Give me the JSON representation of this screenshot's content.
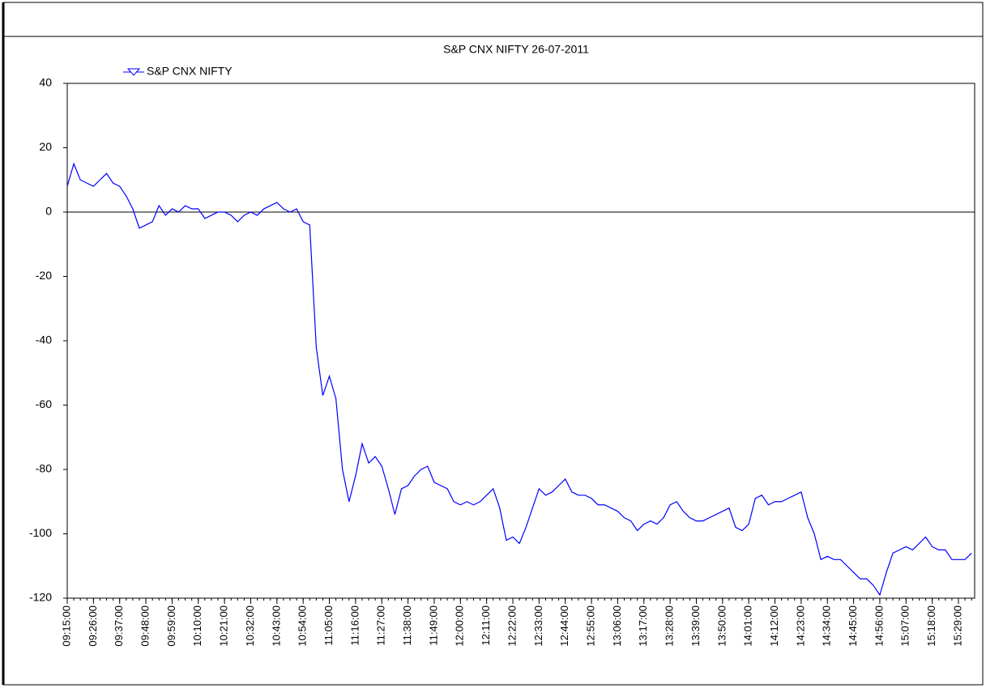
{
  "chart_data": {
    "type": "line",
    "title": "S&P CNX NIFTY  26-07-2011",
    "categories": [
      "09:15:00",
      null,
      null,
      null,
      "09:26:00",
      null,
      null,
      null,
      "09:37:00",
      null,
      null,
      null,
      "09:48:00",
      null,
      null,
      null,
      "09:59:00",
      null,
      null,
      null,
      "10:10:00",
      null,
      null,
      null,
      "10:21:00",
      null,
      null,
      null,
      "10:32:00",
      null,
      null,
      null,
      "10:43:00",
      null,
      null,
      null,
      "10:54:00",
      null,
      null,
      null,
      "11:05:00",
      null,
      null,
      null,
      "11:16:00",
      null,
      null,
      null,
      "11:27:00",
      null,
      null,
      null,
      "11:38:00",
      null,
      null,
      null,
      "11:49:00",
      null,
      null,
      null,
      "12:00:00",
      null,
      null,
      null,
      "12:11:00",
      null,
      null,
      null,
      "12:22:00",
      null,
      null,
      null,
      "12:33:00",
      null,
      null,
      null,
      "12:44:00",
      null,
      null,
      null,
      "12:55:00",
      null,
      null,
      null,
      "13:06:00",
      null,
      null,
      null,
      "13:17:00",
      null,
      null,
      null,
      "13:28:00",
      null,
      null,
      null,
      "13:39:00",
      null,
      null,
      null,
      "13:50:00",
      null,
      null,
      null,
      "14:01:00",
      null,
      null,
      null,
      "14:12:00",
      null,
      null,
      null,
      "14:23:00",
      null,
      null,
      null,
      "14:34:00",
      null,
      null,
      null,
      "14:45:00",
      null,
      null,
      null,
      "14:56:00",
      null,
      null,
      null,
      "15:07:00",
      null,
      null,
      null,
      "15:18:00",
      null,
      null,
      null,
      "15:29:00",
      null,
      null
    ],
    "series": [
      {
        "name": "S&P CNX NIFTY",
        "color": "#0000ff",
        "values": [
          8,
          15,
          10,
          9,
          8,
          10,
          12,
          9,
          8,
          5,
          1,
          -5,
          -4,
          -3,
          2,
          -1,
          1,
          0,
          2,
          1,
          1,
          -2,
          -1,
          0,
          0,
          -1,
          -3,
          -1,
          0,
          -1,
          1,
          2,
          3,
          1,
          0,
          1,
          -3,
          -4,
          -42,
          -57,
          -51,
          -58,
          -80,
          -90,
          -82,
          -72,
          -78,
          -76,
          -79,
          -86,
          -94,
          -86,
          -85,
          -82,
          -80,
          -79,
          -84,
          -85,
          -86,
          -90,
          -91,
          -90,
          -91,
          -90,
          -88,
          -86,
          -92,
          -102,
          -101,
          -103,
          -98,
          -92,
          -86,
          -88,
          -87,
          -85,
          -83,
          -87,
          -88,
          -88,
          -89,
          -91,
          -91,
          -92,
          -93,
          -95,
          -96,
          -99,
          -97,
          -96,
          -97,
          -95,
          -91,
          -90,
          -93,
          -95,
          -96,
          -96,
          -95,
          -94,
          -93,
          -92,
          -98,
          -99,
          -97,
          -89,
          -88,
          -91,
          -90,
          -90,
          -89,
          -88,
          -87,
          -95,
          -100,
          -108,
          -107,
          -108,
          -108,
          -110,
          -112,
          -114,
          -114,
          -116,
          -119,
          -112,
          -106,
          -105,
          -104,
          -105,
          -103,
          -101,
          -104,
          -105,
          -105,
          -108,
          -108,
          -108,
          -106
        ]
      }
    ],
    "ylim": [
      -120,
      40
    ],
    "yticks": [
      -120,
      -100,
      -80,
      -60,
      -40,
      -20,
      0,
      20,
      40
    ],
    "zero_line": true,
    "legend": "top-left"
  }
}
